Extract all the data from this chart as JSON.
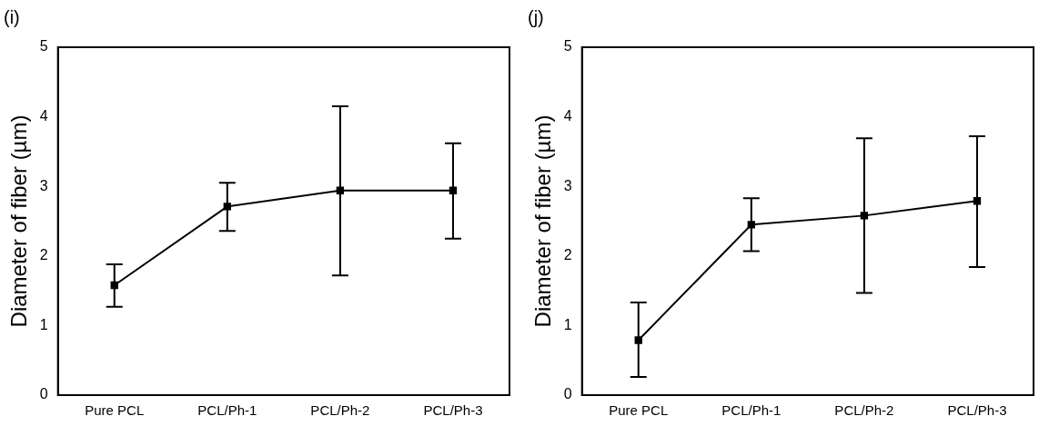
{
  "chart_data": [
    {
      "type": "line",
      "title": "(i)",
      "ylabel": "Diameter of fiber (µm)",
      "categories": [
        "Pure PCL",
        "PCL/Ph-1",
        "PCL/Ph-2",
        "PCL/Ph-3"
      ],
      "series": [
        {
          "color": "#000000",
          "values": [
            1.58,
            2.71,
            2.94,
            2.94
          ],
          "errors": [
            [
              1.27,
              1.88
            ],
            [
              2.36,
              3.05
            ],
            [
              1.72,
              4.15
            ],
            [
              2.25,
              3.62
            ]
          ]
        }
      ],
      "ylim": [
        0,
        5
      ],
      "yticks": [
        0,
        1,
        2,
        3,
        4,
        5
      ],
      "grid": false,
      "legend": false,
      "marker": "square",
      "line_style": "solid"
    },
    {
      "type": "line",
      "title": "(j)",
      "ylabel": "Diameter of fiber (µm)",
      "categories": [
        "Pure PCL",
        "PCL/Ph-1",
        "PCL/Ph-2",
        "PCL/Ph-3"
      ],
      "series": [
        {
          "color": "#000000",
          "values": [
            0.79,
            2.45,
            2.58,
            2.79
          ],
          "errors": [
            [
              0.26,
              1.33
            ],
            [
              2.07,
              2.83
            ],
            [
              1.47,
              3.69
            ],
            [
              1.84,
              3.72
            ]
          ]
        }
      ],
      "ylim": [
        0,
        5
      ],
      "yticks": [
        0,
        1,
        2,
        3,
        4,
        5
      ],
      "grid": false,
      "legend": false,
      "marker": "square",
      "line_style": "solid"
    }
  ]
}
